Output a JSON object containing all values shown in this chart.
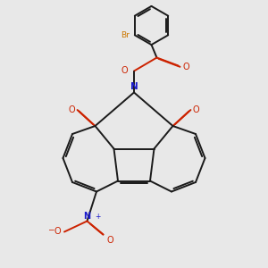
{
  "bg_color": "#e8e8e8",
  "bond_color": "#1a1a1a",
  "o_color": "#cc2200",
  "n_color": "#1a1acc",
  "br_color": "#cc7700",
  "lw": 1.4,
  "figsize": [
    3.0,
    3.0
  ],
  "dpi": 100,
  "xlim": [
    0,
    10
  ],
  "ylim": [
    0,
    10
  ]
}
